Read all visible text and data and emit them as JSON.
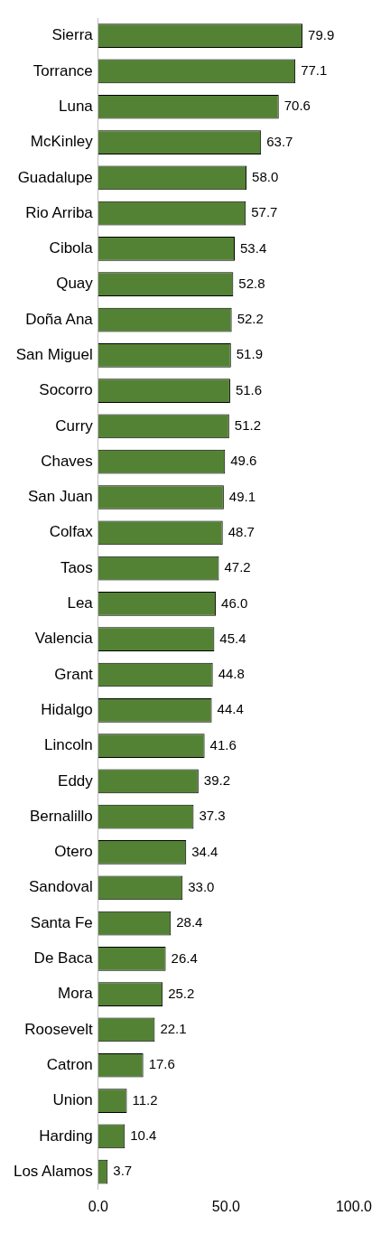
{
  "chart_data": {
    "type": "bar",
    "orientation": "horizontal",
    "categories": [
      "Sierra",
      "Torrance",
      "Luna",
      "McKinley",
      "Guadalupe",
      "Rio Arriba",
      "Cibola",
      "Quay",
      "Doña Ana",
      "San Miguel",
      "Socorro",
      "Curry",
      "Chaves",
      "San Juan",
      "Colfax",
      "Taos",
      "Lea",
      "Valencia",
      "Grant",
      "Hidalgo",
      "Lincoln",
      "Eddy",
      "Bernalillo",
      "Otero",
      "Sandoval",
      "Santa Fe",
      "De Baca",
      "Mora",
      "Roosevelt",
      "Catron",
      "Union",
      "Harding",
      "Los Alamos"
    ],
    "values": [
      79.9,
      77.1,
      70.6,
      63.7,
      58.0,
      57.7,
      53.4,
      52.8,
      52.2,
      51.9,
      51.6,
      51.2,
      49.6,
      49.1,
      48.7,
      47.2,
      46.0,
      45.4,
      44.8,
      44.4,
      41.6,
      39.2,
      37.3,
      34.4,
      33.0,
      28.4,
      26.4,
      25.2,
      22.1,
      17.6,
      11.2,
      10.4,
      3.7
    ],
    "value_labels": [
      "79.9",
      "77.1",
      "70.6",
      "63.7",
      "58.0",
      "57.7",
      "53.4",
      "52.8",
      "52.2",
      "51.9",
      "51.6",
      "51.2",
      "49.6",
      "49.1",
      "48.7",
      "47.2",
      "46.0",
      "45.4",
      "44.8",
      "44.4",
      "41.6",
      "39.2",
      "37.3",
      "34.4",
      "33.0",
      "28.4",
      "26.4",
      "25.2",
      "22.1",
      "17.6",
      "11.2",
      "10.4",
      "3.7"
    ],
    "color": "#548235",
    "xlim": [
      0,
      100
    ],
    "xticks": [
      {
        "value": 0,
        "label": "0.0"
      },
      {
        "value": 50,
        "label": "50.0"
      },
      {
        "value": 100,
        "label": "100.0"
      }
    ],
    "grid": false,
    "legend": false
  }
}
